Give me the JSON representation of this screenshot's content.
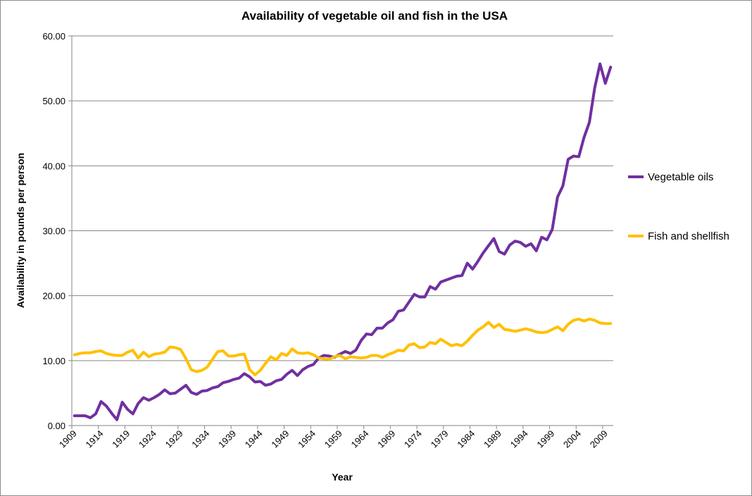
{
  "chart_data": {
    "type": "line",
    "title": "Availability of vegetable oil and fish in the USA",
    "xlabel": "Year",
    "ylabel": "Availability in pounds per person",
    "ylim": [
      0,
      60
    ],
    "yticks": [
      "0.00",
      "10.00",
      "20.00",
      "30.00",
      "40.00",
      "50.00",
      "60.00"
    ],
    "x_start": 1909,
    "x_end": 2010,
    "xtick_labels": [
      "1909",
      "1914",
      "1919",
      "1924",
      "1929",
      "1934",
      "1939",
      "1944",
      "1949",
      "1954",
      "1959",
      "1964",
      "1969",
      "1974",
      "1979",
      "1984",
      "1989",
      "1994",
      "1999",
      "2004",
      "2009"
    ],
    "grid": "horizontal",
    "legend_position": "right",
    "series": [
      {
        "name": "Vegetable oils",
        "color": "#7030a0",
        "values": [
          1.5,
          1.5,
          1.5,
          1.2,
          1.8,
          3.7,
          3.0,
          1.9,
          0.9,
          3.6,
          2.5,
          1.8,
          3.4,
          4.3,
          3.9,
          4.3,
          4.8,
          5.5,
          4.9,
          5.0,
          5.6,
          6.2,
          5.1,
          4.8,
          5.3,
          5.4,
          5.8,
          6.0,
          6.6,
          6.8,
          7.1,
          7.3,
          8.0,
          7.5,
          6.7,
          6.8,
          6.2,
          6.4,
          6.9,
          7.1,
          7.9,
          8.5,
          7.7,
          8.6,
          9.1,
          9.4,
          10.4,
          10.8,
          10.7,
          10.5,
          11.0,
          11.4,
          11.1,
          11.6,
          13.1,
          14.1,
          14.0,
          15.0,
          15.0,
          15.8,
          16.3,
          17.6,
          17.8,
          19.0,
          20.2,
          19.8,
          19.8,
          21.4,
          21.0,
          22.1,
          22.4,
          22.7,
          23.0,
          23.1,
          25.0,
          24.1,
          25.3,
          26.6,
          27.7,
          28.8,
          26.8,
          26.4,
          27.8,
          28.4,
          28.2,
          27.6,
          28.0,
          26.9,
          29.0,
          28.6,
          30.2,
          35.2,
          36.9,
          41.0,
          41.5,
          41.4,
          44.4,
          46.7,
          52.0,
          55.7,
          52.7,
          55.2
        ]
      },
      {
        "name": "Fish and shellfish",
        "color": "#ffc000",
        "values": [
          10.9,
          11.1,
          11.2,
          11.2,
          11.4,
          11.5,
          11.1,
          10.9,
          10.8,
          10.8,
          11.3,
          11.6,
          10.4,
          11.3,
          10.6,
          11.0,
          11.1,
          11.3,
          12.1,
          12.0,
          11.7,
          10.3,
          8.6,
          8.3,
          8.5,
          9.0,
          10.2,
          11.4,
          11.5,
          10.7,
          10.7,
          10.9,
          11.0,
          8.6,
          7.8,
          8.5,
          9.6,
          10.6,
          10.1,
          11.1,
          10.8,
          11.8,
          11.2,
          11.1,
          11.2,
          10.9,
          10.4,
          10.3,
          10.2,
          10.6,
          10.8,
          10.3,
          10.6,
          10.5,
          10.4,
          10.5,
          10.8,
          10.8,
          10.5,
          10.9,
          11.2,
          11.6,
          11.5,
          12.4,
          12.6,
          12.0,
          12.1,
          12.8,
          12.6,
          13.3,
          12.8,
          12.3,
          12.5,
          12.3,
          13.0,
          13.9,
          14.7,
          15.2,
          15.9,
          15.1,
          15.6,
          14.8,
          14.7,
          14.5,
          14.7,
          14.9,
          14.7,
          14.4,
          14.3,
          14.4,
          14.8,
          15.2,
          14.6,
          15.6,
          16.2,
          16.4,
          16.1,
          16.4,
          16.2,
          15.8,
          15.7,
          15.7
        ]
      }
    ]
  }
}
